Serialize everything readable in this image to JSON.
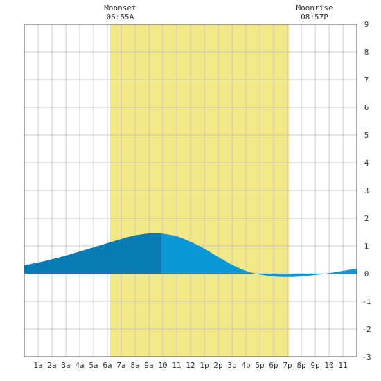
{
  "chart_data": {
    "type": "area",
    "x_tick_labels": [
      "1a",
      "2a",
      "3a",
      "4a",
      "5a",
      "6a",
      "7a",
      "8a",
      "9a",
      "10",
      "11",
      "12",
      "1p",
      "2p",
      "3p",
      "4p",
      "5p",
      "6p",
      "7p",
      "8p",
      "9p",
      "10",
      "11"
    ],
    "x_range_hours": [
      0,
      24
    ],
    "ylim": [
      -3,
      9
    ],
    "y_ticks": [
      -3,
      -2,
      -1,
      0,
      1,
      2,
      3,
      4,
      5,
      6,
      7,
      8,
      9
    ],
    "grid": true,
    "daylight_band_hours": [
      6.2,
      19.1
    ],
    "daylight_color": "#f2e888",
    "events": [
      {
        "title": "Moonset",
        "time": "06:55A",
        "hour": 6.92
      },
      {
        "title": "Moonrise",
        "time": "08:57P",
        "hour": 20.95
      }
    ],
    "tide_points": [
      {
        "hour": 0,
        "value": 0.3
      },
      {
        "hour": 1,
        "value": 0.4
      },
      {
        "hour": 2,
        "value": 0.52
      },
      {
        "hour": 3,
        "value": 0.65
      },
      {
        "hour": 4,
        "value": 0.8
      },
      {
        "hour": 5,
        "value": 0.95
      },
      {
        "hour": 6,
        "value": 1.1
      },
      {
        "hour": 7,
        "value": 1.25
      },
      {
        "hour": 8,
        "value": 1.38
      },
      {
        "hour": 9,
        "value": 1.45
      },
      {
        "hour": 9.9,
        "value": 1.45
      },
      {
        "hour": 11,
        "value": 1.35
      },
      {
        "hour": 12,
        "value": 1.15
      },
      {
        "hour": 13,
        "value": 0.9
      },
      {
        "hour": 14,
        "value": 0.6
      },
      {
        "hour": 15,
        "value": 0.32
      },
      {
        "hour": 16,
        "value": 0.1
      },
      {
        "hour": 17,
        "value": -0.03
      },
      {
        "hour": 18,
        "value": -0.1
      },
      {
        "hour": 19,
        "value": -0.12
      },
      {
        "hour": 20,
        "value": -0.1
      },
      {
        "hour": 21,
        "value": -0.05
      },
      {
        "hour": 22,
        "value": 0.02
      },
      {
        "hour": 23,
        "value": 0.1
      },
      {
        "hour": 24,
        "value": 0.18
      }
    ],
    "split_hour": 9.9,
    "fill_colors": {
      "early": "#0a7cb5",
      "late": "#0c98d8"
    },
    "grid_color": "#c8c8c8"
  }
}
